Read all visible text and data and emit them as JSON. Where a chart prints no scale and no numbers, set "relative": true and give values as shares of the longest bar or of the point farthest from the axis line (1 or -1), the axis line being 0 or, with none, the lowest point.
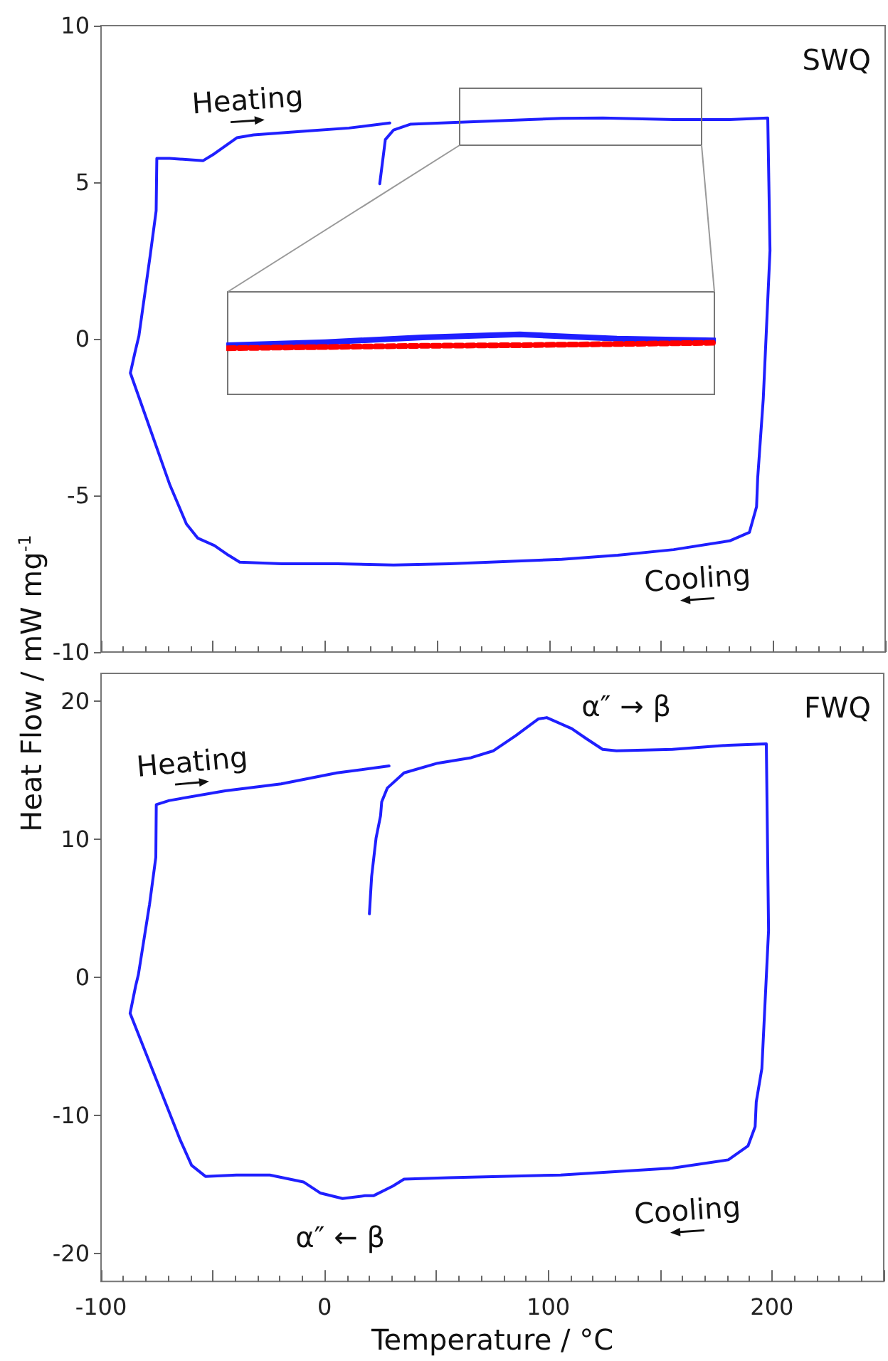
{
  "chart_data": [
    {
      "type": "line",
      "ylabel": "Heat Flow / mW mg$^{-1}$",
      "xlim": [
        -100,
        250
      ],
      "xticks": [
        -100,
        {
          "value": -50,
          "label": null
        },
        0,
        {
          "value": 50,
          "label": null
        },
        100,
        {
          "value": 150,
          "label": null
        },
        200,
        {
          "value": 250,
          "label": null
        }
      ],
      "ylim": [
        -10,
        10
      ],
      "yticks": [
        -10,
        -5,
        0,
        5,
        10
      ],
      "tick_labels": "y",
      "annotations": [
        "SWQ",
        "Heating",
        "Cooling"
      ],
      "series": [
        {
          "color": "#1f1fff",
          "x": [
            24.4,
            26.9,
            30.6,
            38,
            58,
            105.6,
            124,
            155.6,
            180.6,
            197.6,
            198.6,
            195.6,
            193.1,
            192.6,
            189.4,
            180.6,
            155.6,
            130.6,
            105.6,
            55.6,
            30.6,
            5.6,
            -19.4,
            -38.1,
            -43.1,
            -49.4,
            -56.9,
            -61.9,
            -69.4,
            -86.9,
            -84.9,
            -83.1,
            -78.1,
            -75.4,
            -75.1,
            -69.4,
            -54.4,
            -49.4,
            -39.4,
            -31.9,
            -6.9,
            10.6,
            28.9
          ],
          "values": [
            4.95,
            6.36,
            6.67,
            6.85,
            6.91,
            7.04,
            7.05,
            7.0,
            7.0,
            7.05,
            2.82,
            -1.91,
            -4.45,
            -5.36,
            -6.18,
            -6.45,
            -6.73,
            -6.91,
            -7.04,
            -7.18,
            -7.22,
            -7.18,
            -7.18,
            -7.13,
            -6.91,
            -6.6,
            -6.36,
            -5.91,
            -4.64,
            -1.09,
            -0.45,
            0.09,
            2.64,
            4.09,
            5.76,
            5.76,
            5.69,
            5.91,
            6.42,
            6.51,
            6.64,
            6.73,
            6.89
          ]
        }
      ]
    },
    {
      "type": "line",
      "xlabel": "Temperature / °C",
      "xlim": [
        -100,
        250
      ],
      "xticks": [
        -100,
        {
          "value": -50,
          "label": null
        },
        0,
        {
          "value": 50,
          "label": null
        },
        100,
        {
          "value": 150,
          "label": null
        },
        200,
        {
          "value": 250,
          "label": null
        }
      ],
      "ylim": [
        -22,
        22
      ],
      "yticks": [
        -20,
        -10,
        0,
        10,
        20
      ],
      "annotations": [
        "FWQ",
        "Heating",
        "Cooling",
        "α″ → β",
        "α″ ← β"
      ],
      "series": [
        {
          "color": "#1f1fff",
          "x": [
            20,
            21,
            23,
            25,
            25.5,
            28,
            35.5,
            50.5,
            65.5,
            75.5,
            85.5,
            95.5,
            99.3,
            110.5,
            116.8,
            124.3,
            130.5,
            155.5,
            180.5,
            197.5,
            198.5,
            195.5,
            193,
            192.5,
            189.3,
            180.5,
            155.5,
            105.5,
            55.5,
            35.5,
            30.5,
            21.8,
            18,
            8,
            -2,
            -9.5,
            -24.5,
            -39.5,
            -53.3,
            -59.5,
            -64.5,
            -87,
            -84.5,
            -83.3,
            -78.3,
            -75.5,
            -75.3,
            -69.5,
            -44.5,
            -19.5,
            5.5,
            28.8
          ],
          "values": [
            4.6,
            7.3,
            10.1,
            11.7,
            12.7,
            13.7,
            14.8,
            15.5,
            15.9,
            16.4,
            17.5,
            18.7,
            18.8,
            18.0,
            17.3,
            16.5,
            16.4,
            16.5,
            16.8,
            16.9,
            3.4,
            -6.6,
            -9.0,
            -10.8,
            -12.2,
            -13.2,
            -13.8,
            -14.3,
            -14.5,
            -14.6,
            -15.1,
            -15.8,
            -15.8,
            -16.0,
            -15.6,
            -14.8,
            -14.3,
            -14.3,
            -14.4,
            -13.6,
            -11.8,
            -2.6,
            -0.6,
            0.2,
            5.3,
            8.7,
            12.5,
            12.8,
            13.5,
            14.0,
            14.8,
            15.3
          ]
        }
      ]
    },
    {
      "type": "line",
      "relative": true,
      "categories": [
        null,
        null,
        null,
        null,
        null,
        null
      ],
      "tick_labels": false,
      "series": [
        {
          "color": "#1f1fff",
          "values": [
            0.82,
            0.87,
            0.95,
            1,
            0.93,
            0.9
          ]
        },
        {
          "color": "#ff0000",
          "line_style": "dashed",
          "values": [
            0.77,
            0.79,
            0.81,
            0.82,
            0.84,
            0.86
          ]
        }
      ]
    }
  ]
}
